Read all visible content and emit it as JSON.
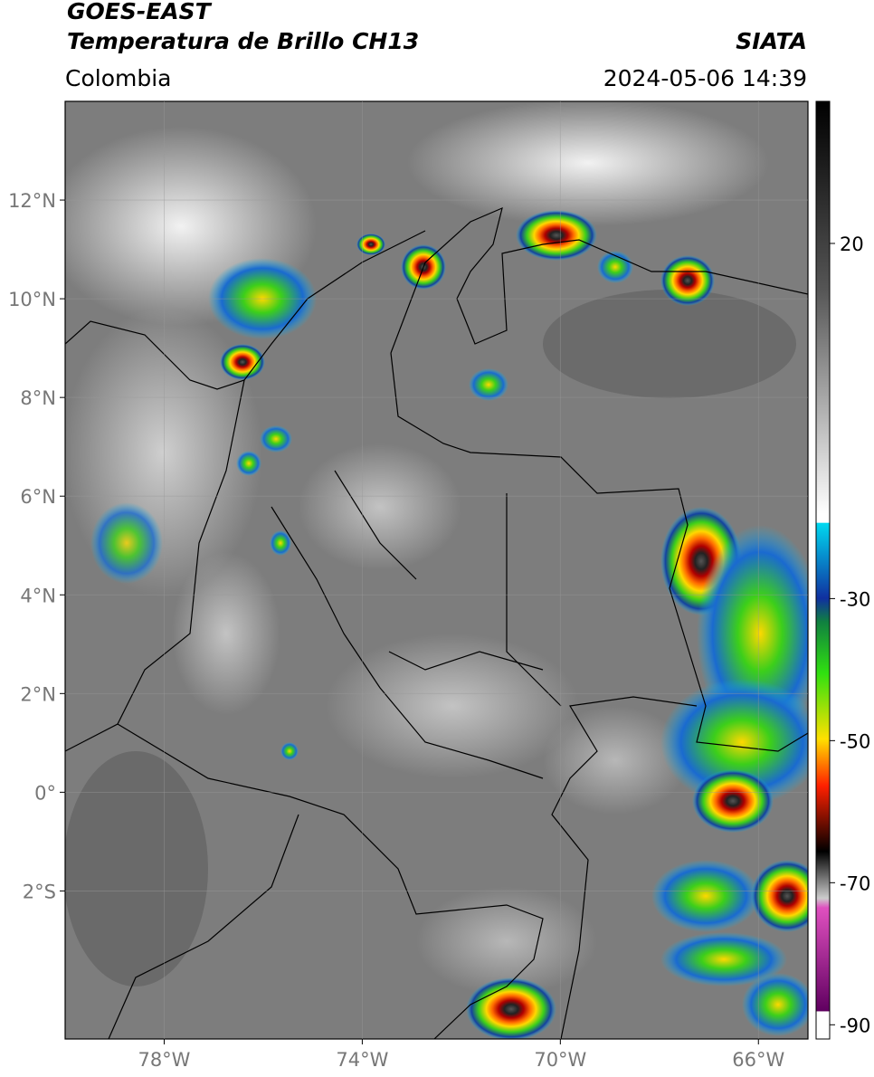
{
  "header": {
    "satellite": "GOES-EAST",
    "product": "Temperatura de Brillo CH13",
    "source": "SIATA",
    "region": "Colombia",
    "datetime": "2024-05-06 14:39"
  },
  "map": {
    "xlim": [
      -80,
      -65
    ],
    "ylim": [
      -5,
      14
    ],
    "xticks": [
      {
        "value": -78,
        "label": "78°W"
      },
      {
        "value": -74,
        "label": "74°W"
      },
      {
        "value": -70,
        "label": "70°W"
      },
      {
        "value": -66,
        "label": "66°W"
      }
    ],
    "yticks": [
      {
        "value": 12,
        "label": "12°N"
      },
      {
        "value": 10,
        "label": "10°N"
      },
      {
        "value": 8,
        "label": "8°N"
      },
      {
        "value": 6,
        "label": "6°N"
      },
      {
        "value": 4,
        "label": "4°N"
      },
      {
        "value": 2,
        "label": "2°N"
      },
      {
        "value": 0,
        "label": "0°"
      },
      {
        "value": -2,
        "label": "2°S"
      }
    ],
    "grid": true
  },
  "colorbar": {
    "lim": [
      -92,
      40
    ],
    "ticks": [
      20,
      -30,
      -50,
      -70,
      -90
    ]
  }
}
